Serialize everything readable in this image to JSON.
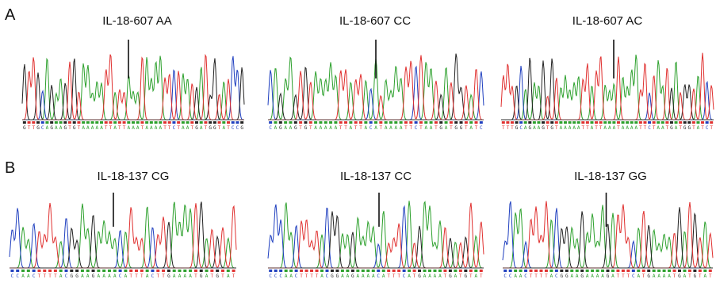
{
  "panels": [
    {
      "letter": "A",
      "traces": [
        {
          "title": "IL-18-607 AA",
          "sequence": "GTTGCAGAAGTGTAAAAATTATTAAATAAAATTCTAATGATGGTATCCG"
        },
        {
          "title": "IL-18-607 CC",
          "sequence": "CAGAAGTGTAAAAATTATTACATAAAATTCTAATGATGGTATC"
        },
        {
          "title": "IL-18-607 AC",
          "sequence": "TTTGCAGAAGTGTAAAAATTATTAAATAAAATTCTAATGATGGTATCT"
        }
      ]
    },
    {
      "letter": "B",
      "traces": [
        {
          "title": "IL-18-137 CG",
          "sequence": "CCAACTTTTACGGAAGAAAACATTTACTTGAAAATGATGTAT"
        },
        {
          "title": "IL-18-137 CC",
          "sequence": "CCCAACTTTTACGGAAGAAAACATTTCATGAAAATGATGTAT"
        },
        {
          "title": "IL-18-137 GG",
          "sequence": "CCAACTTTTACGGAAGAAAAGATTTCATGAAAATGATGTAT"
        }
      ]
    }
  ],
  "colors": {
    "A": "#2ca02c",
    "C": "#1f3fbf",
    "G": "#222222",
    "T": "#e0302f"
  }
}
